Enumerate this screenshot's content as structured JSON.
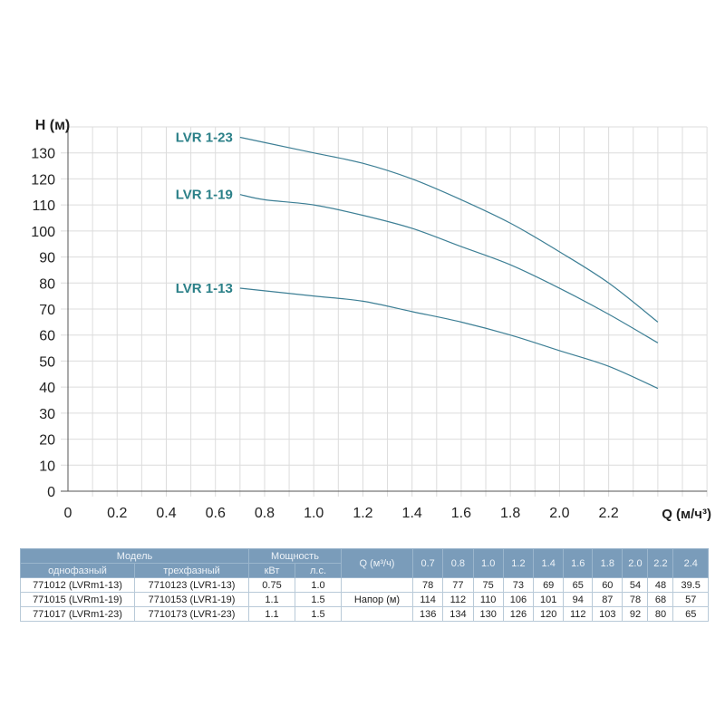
{
  "chart_data": {
    "type": "line",
    "ylabel": "H (м)",
    "xlabel": "Q (м/ч³)",
    "xlim": [
      0,
      2.6
    ],
    "ylim": [
      0,
      140
    ],
    "xticks": [
      "0",
      "0.2",
      "0.4",
      "0.6",
      "0.8",
      "1.0",
      "1.2",
      "1.4",
      "1.6",
      "1.8",
      "2.0",
      "2.2"
    ],
    "yticks": [
      "0",
      "10",
      "20",
      "30",
      "40",
      "50",
      "60",
      "70",
      "80",
      "90",
      "100",
      "110",
      "120",
      "130"
    ],
    "grid": true,
    "x": [
      0.7,
      0.8,
      1.0,
      1.2,
      1.4,
      1.6,
      1.8,
      2.0,
      2.2,
      2.4
    ],
    "series": [
      {
        "name": "LVR 1-23",
        "values": [
          136,
          134,
          130,
          126,
          120,
          112,
          103,
          92,
          80,
          65
        ]
      },
      {
        "name": "LVR 1-19",
        "values": [
          114,
          112,
          110,
          106,
          101,
          94,
          87,
          78,
          68,
          57
        ]
      },
      {
        "name": "LVR 1-13",
        "values": [
          78,
          77,
          75,
          73,
          69,
          65,
          60,
          54,
          48,
          39.5
        ]
      }
    ],
    "colors": {
      "line": "#3d7f95",
      "label": "#2b8088",
      "grid": "#dcdcdc",
      "axis": "#555555"
    }
  },
  "table": {
    "model_header": "Модель",
    "power_header": "Мощность",
    "q_header": "Q (м³/ч)",
    "single_phase": "однофазный",
    "three_phase": "трехфазный",
    "kw": "кВт",
    "hp": "л.с.",
    "head_label": "Напор (м)",
    "q_values": [
      "0.7",
      "0.8",
      "1.0",
      "1.2",
      "1.4",
      "1.6",
      "1.8",
      "2.0",
      "2.2",
      "2.4"
    ],
    "rows": [
      {
        "single": "771012 (LVRm1-13)",
        "three": "7710123 (LVR1-13)",
        "kw": "0.75",
        "hp": "1.0",
        "head": [
          "78",
          "77",
          "75",
          "73",
          "69",
          "65",
          "60",
          "54",
          "48",
          "39.5"
        ]
      },
      {
        "single": "771015 (LVRm1-19)",
        "three": "7710153 (LVR1-19)",
        "kw": "1.1",
        "hp": "1.5",
        "head": [
          "114",
          "112",
          "110",
          "106",
          "101",
          "94",
          "87",
          "78",
          "68",
          "57"
        ]
      },
      {
        "single": "771017 (LVRm1-23)",
        "three": "7710173 (LVR1-23)",
        "kw": "1.1",
        "hp": "1.5",
        "head": [
          "136",
          "134",
          "130",
          "126",
          "120",
          "112",
          "103",
          "92",
          "80",
          "65"
        ]
      }
    ],
    "header_color": "#7a9cba"
  }
}
